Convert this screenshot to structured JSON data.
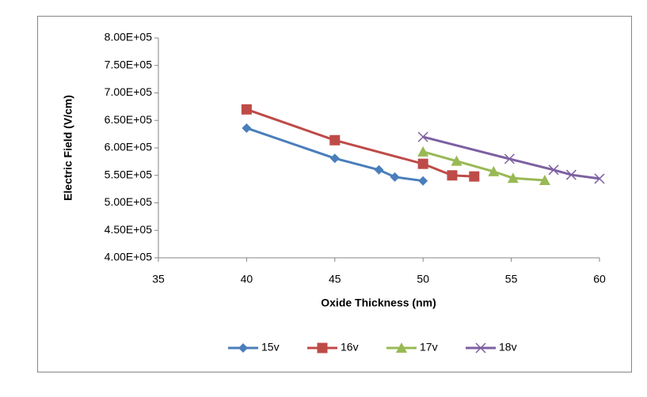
{
  "chart_data": {
    "type": "scatter-line",
    "x_label": "Oxide Thickness (nm)",
    "y_label": "Electric Field (V/cm)",
    "xlim": [
      35,
      60
    ],
    "xticks": [
      35,
      40,
      45,
      50,
      55,
      60
    ],
    "ylim": [
      400000,
      800000
    ],
    "yticks": [
      {
        "value": 400000,
        "label": "4.00E+05"
      },
      {
        "value": 450000,
        "label": "4.50E+05"
      },
      {
        "value": 500000,
        "label": "5.00E+05"
      },
      {
        "value": 550000,
        "label": "5.50E+05"
      },
      {
        "value": 600000,
        "label": "6.00E+05"
      },
      {
        "value": 650000,
        "label": "6.50E+05"
      },
      {
        "value": 700000,
        "label": "7.00E+05"
      },
      {
        "value": 750000,
        "label": "7.50E+05"
      },
      {
        "value": 800000,
        "label": "8.00E+05"
      }
    ],
    "grid": false,
    "legend": "bottom",
    "series": [
      {
        "name": "15v",
        "color": "#4a7ebb",
        "marker": "diamond",
        "x": [
          40,
          45,
          47.5,
          48.4,
          50
        ],
        "values": [
          636000,
          581000,
          560000,
          547000,
          540000
        ]
      },
      {
        "name": "16v",
        "color": "#be4b48",
        "marker": "square",
        "x": [
          40,
          45,
          50,
          51.65,
          52.9
        ],
        "values": [
          670000,
          614000,
          571000,
          550000,
          548000
        ]
      },
      {
        "name": "17v",
        "color": "#98b954",
        "marker": "triangle",
        "x": [
          50,
          51.9,
          54,
          55.1,
          56.9
        ],
        "values": [
          593000,
          576000,
          557000,
          545000,
          541000
        ]
      },
      {
        "name": "18v",
        "color": "#7d60a0",
        "marker": "x",
        "x": [
          50,
          54.9,
          57.4,
          58.4,
          60
        ],
        "values": [
          620000,
          580000,
          560000,
          551000,
          544000
        ]
      }
    ]
  }
}
